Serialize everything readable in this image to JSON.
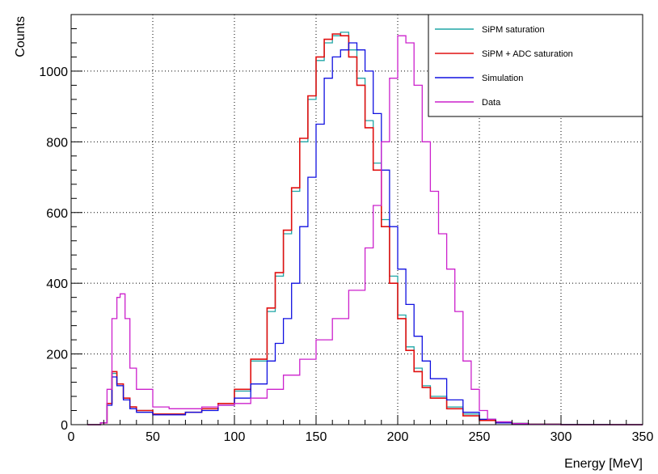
{
  "chart_data": {
    "type": "line",
    "xlabel": "Energy [MeV]",
    "ylabel": "Counts",
    "xlim": [
      0,
      350
    ],
    "ylim": [
      0,
      1160
    ],
    "x_ticks": [
      0,
      50,
      100,
      150,
      200,
      250,
      300,
      350
    ],
    "y_ticks": [
      0,
      200,
      400,
      600,
      800,
      1000
    ],
    "grid": true,
    "legend_position": "top-right",
    "series": [
      {
        "name": "SiPM saturation",
        "color": "#1fa6a6",
        "x": [
          10,
          18,
          22,
          25,
          28,
          32,
          36,
          40,
          50,
          60,
          70,
          80,
          90,
          100,
          110,
          120,
          125,
          130,
          135,
          140,
          145,
          150,
          155,
          160,
          165,
          170,
          175,
          180,
          185,
          190,
          195,
          200,
          205,
          210,
          215,
          220,
          230,
          240,
          250,
          260,
          270,
          280,
          300,
          330,
          350
        ],
        "y": [
          0,
          5,
          60,
          145,
          110,
          75,
          50,
          40,
          30,
          30,
          35,
          45,
          60,
          95,
          180,
          320,
          420,
          540,
          660,
          800,
          920,
          1030,
          1080,
          1100,
          1110,
          1060,
          980,
          860,
          740,
          580,
          420,
          310,
          220,
          160,
          110,
          80,
          50,
          30,
          15,
          8,
          4,
          2,
          1,
          0,
          0
        ]
      },
      {
        "name": "SiPM + ADC saturation",
        "color": "#e01010",
        "x": [
          10,
          18,
          22,
          25,
          28,
          32,
          36,
          40,
          50,
          60,
          70,
          80,
          90,
          100,
          110,
          120,
          125,
          130,
          135,
          140,
          145,
          150,
          155,
          160,
          165,
          170,
          175,
          180,
          185,
          190,
          195,
          200,
          205,
          210,
          215,
          220,
          230,
          240,
          250,
          260,
          270,
          280,
          300,
          330,
          350
        ],
        "y": [
          0,
          5,
          60,
          150,
          115,
          75,
          50,
          40,
          30,
          30,
          35,
          45,
          60,
          100,
          185,
          330,
          430,
          550,
          670,
          810,
          930,
          1040,
          1090,
          1105,
          1100,
          1040,
          960,
          840,
          720,
          560,
          400,
          300,
          210,
          150,
          105,
          75,
          45,
          25,
          12,
          6,
          3,
          1,
          0,
          0,
          0
        ]
      },
      {
        "name": "Simulation",
        "color": "#1010e0",
        "x": [
          10,
          18,
          22,
          25,
          28,
          32,
          36,
          40,
          50,
          60,
          70,
          80,
          90,
          100,
          110,
          120,
          125,
          130,
          135,
          140,
          145,
          150,
          155,
          160,
          165,
          170,
          175,
          180,
          185,
          190,
          195,
          200,
          205,
          210,
          215,
          220,
          230,
          240,
          250,
          260,
          270,
          280,
          300,
          330,
          350
        ],
        "y": [
          0,
          5,
          55,
          135,
          110,
          70,
          45,
          35,
          28,
          28,
          35,
          40,
          55,
          75,
          115,
          180,
          230,
          300,
          400,
          560,
          700,
          850,
          980,
          1040,
          1060,
          1080,
          1060,
          1000,
          880,
          720,
          560,
          440,
          340,
          250,
          180,
          130,
          70,
          35,
          15,
          5,
          2,
          1,
          0,
          0,
          0
        ]
      },
      {
        "name": "Data",
        "color": "#cc20cc",
        "x": [
          10,
          18,
          22,
          25,
          28,
          30,
          33,
          36,
          40,
          50,
          60,
          70,
          80,
          90,
          100,
          110,
          120,
          130,
          140,
          150,
          160,
          170,
          180,
          185,
          190,
          195,
          200,
          205,
          210,
          215,
          220,
          225,
          230,
          235,
          240,
          245,
          250,
          255,
          260,
          270,
          280,
          300,
          330,
          350
        ],
        "y": [
          0,
          5,
          100,
          300,
          360,
          370,
          300,
          160,
          100,
          50,
          45,
          45,
          50,
          55,
          60,
          75,
          100,
          140,
          185,
          240,
          300,
          380,
          500,
          620,
          800,
          980,
          1100,
          1080,
          960,
          800,
          660,
          540,
          440,
          320,
          180,
          100,
          40,
          15,
          8,
          3,
          1,
          0,
          0,
          0
        ]
      }
    ]
  }
}
